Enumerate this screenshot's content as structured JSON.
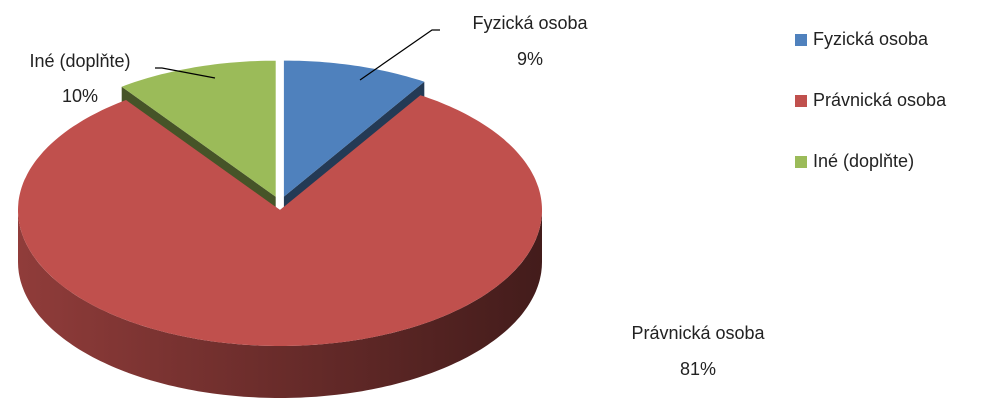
{
  "chart_data": {
    "type": "pie",
    "categories": [
      "Fyzická osoba",
      "Právnická osoba",
      "Iné (doplňte)"
    ],
    "values": [
      9,
      81,
      10
    ],
    "value_labels": [
      "9%",
      "81%",
      "10%"
    ],
    "colors": [
      "#4f81bd",
      "#c0504d",
      "#9bbb59"
    ],
    "legend": "right",
    "three_d": true
  }
}
